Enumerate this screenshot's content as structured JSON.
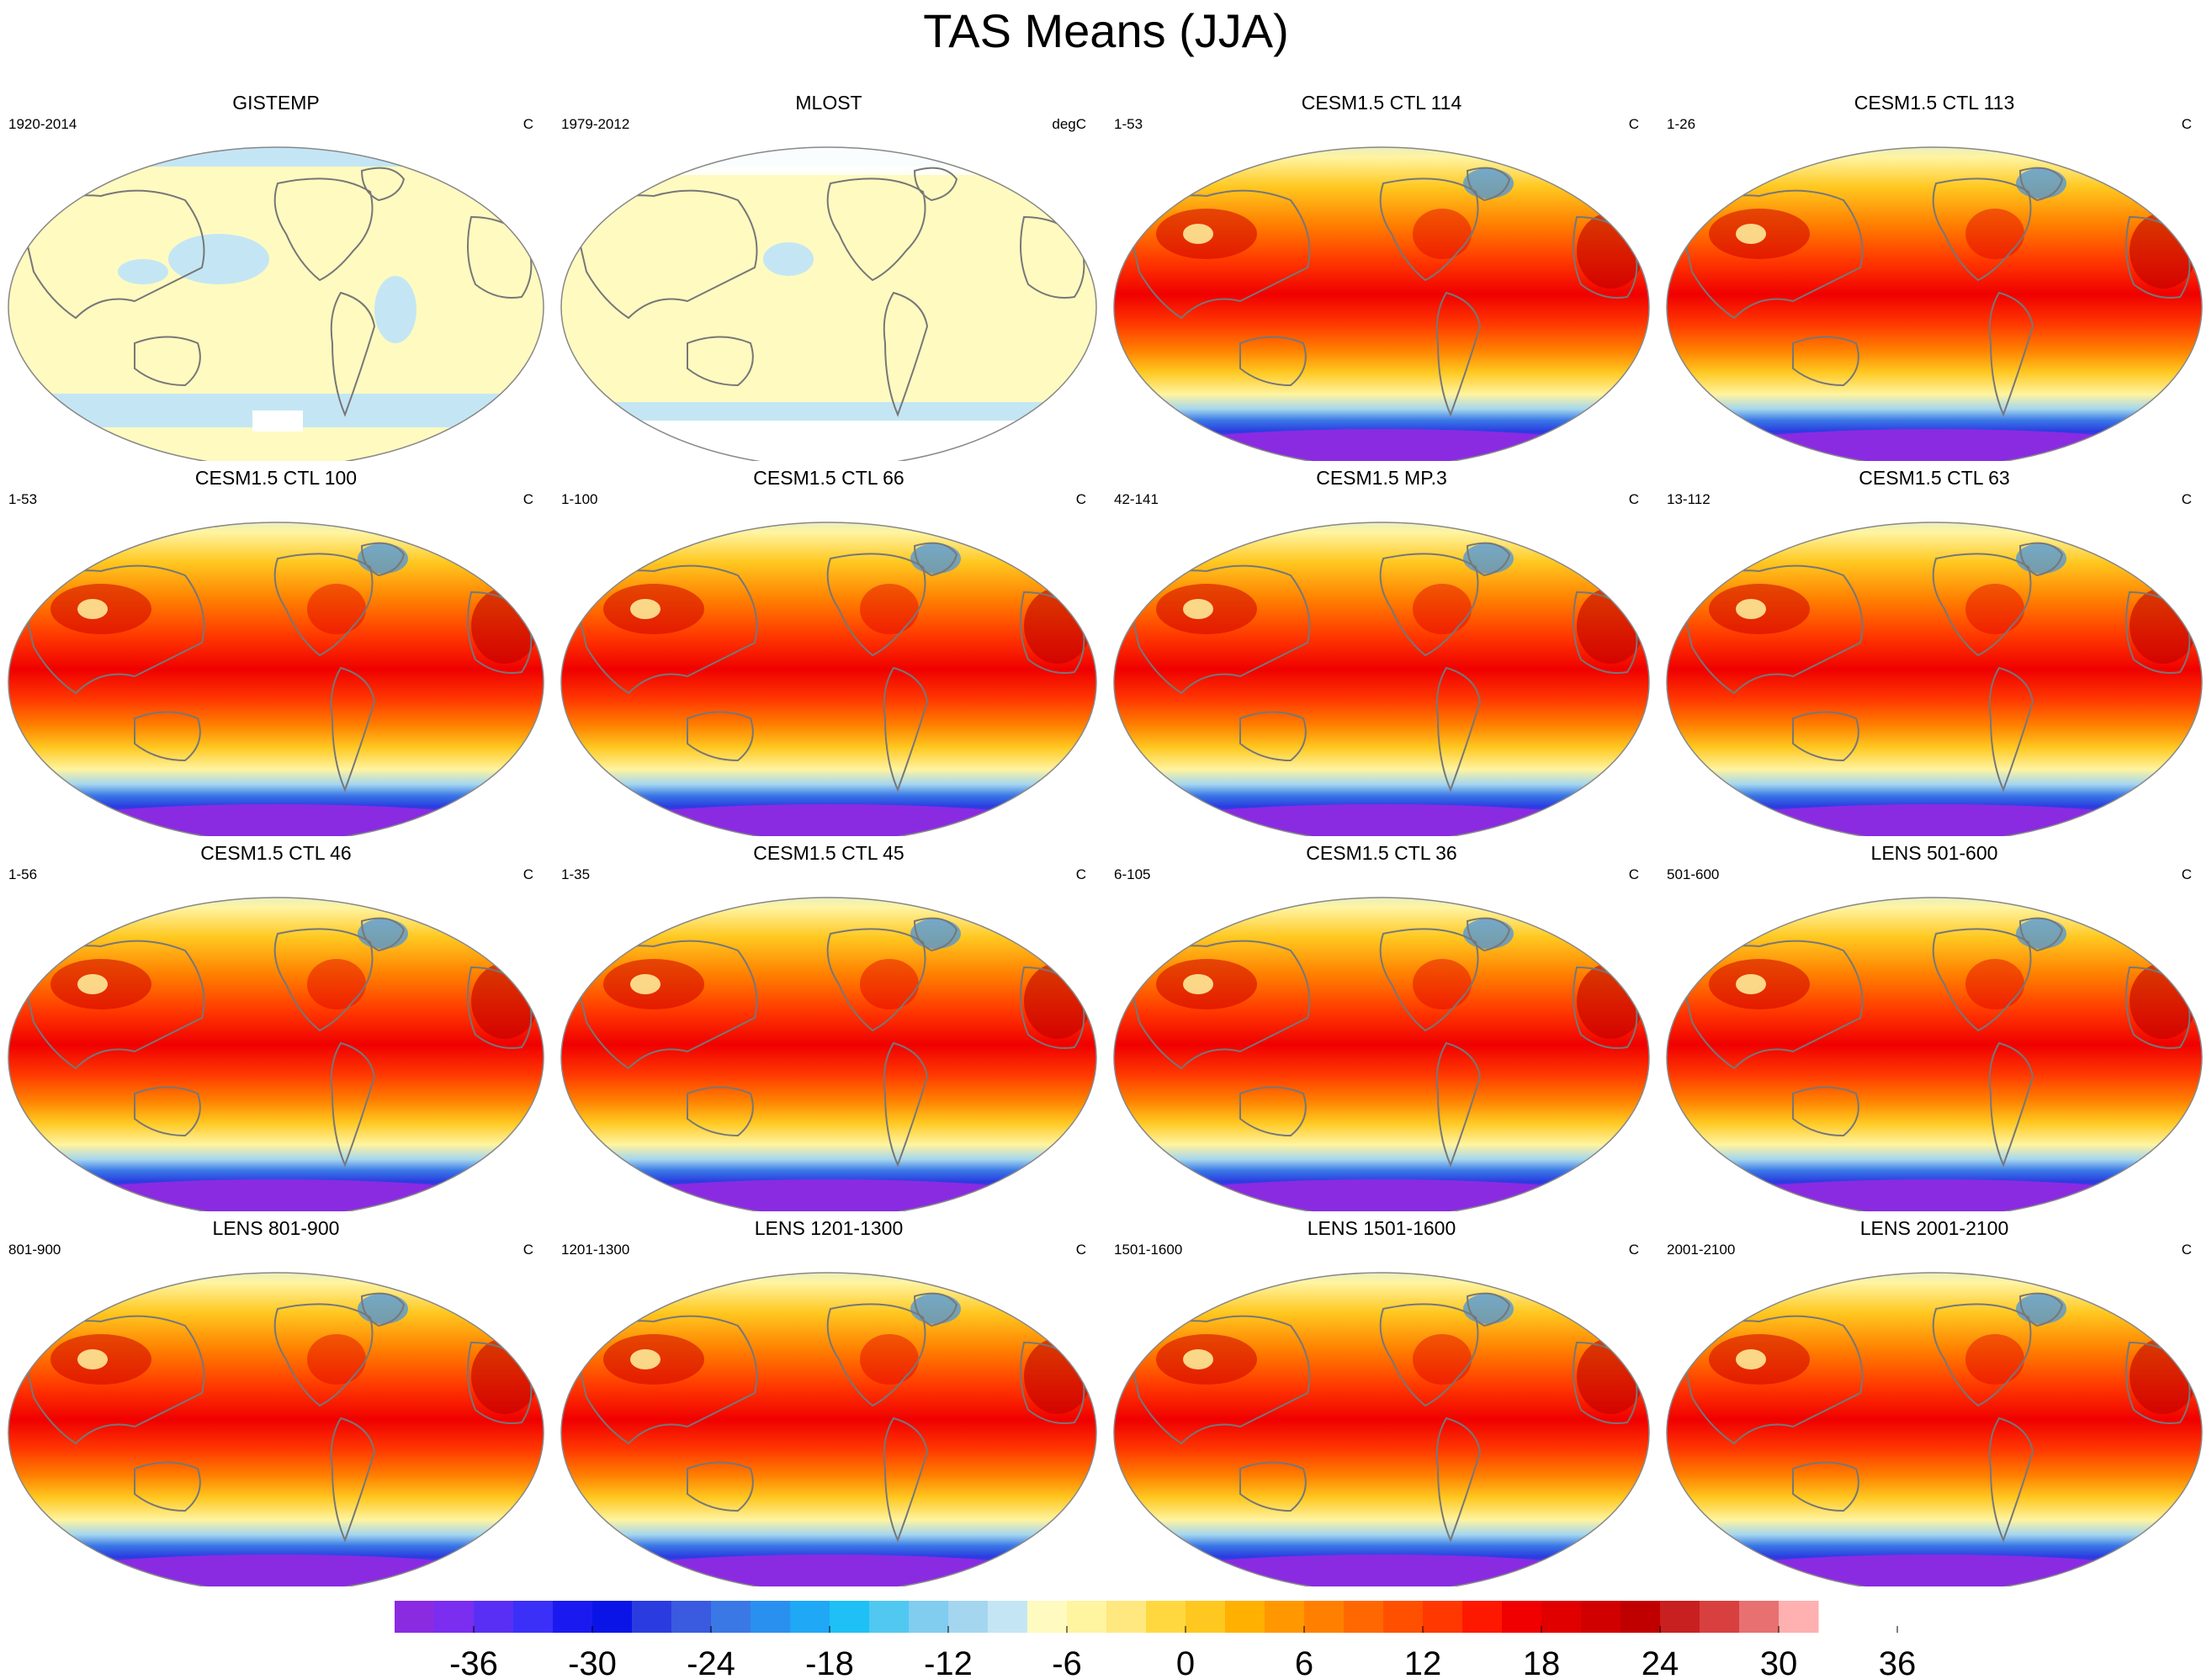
{
  "title": "TAS Means (JJA)",
  "panels": [
    {
      "title": "GISTEMP",
      "period": "1920-2014",
      "unit": "C",
      "style": "obs"
    },
    {
      "title": "MLOST",
      "period": "1979-2012",
      "unit": "degC",
      "style": "obs2"
    },
    {
      "title": "CESM1.5 CTL 114",
      "period": "1-53",
      "unit": "C",
      "style": "model"
    },
    {
      "title": "CESM1.5 CTL 113",
      "period": "1-26",
      "unit": "C",
      "style": "model"
    },
    {
      "title": "CESM1.5 CTL 100",
      "period": "1-53",
      "unit": "C",
      "style": "model"
    },
    {
      "title": "CESM1.5 CTL 66",
      "period": "1-100",
      "unit": "C",
      "style": "model"
    },
    {
      "title": "CESM1.5 MP.3",
      "period": "42-141",
      "unit": "C",
      "style": "model"
    },
    {
      "title": "CESM1.5 CTL 63",
      "period": "13-112",
      "unit": "C",
      "style": "model"
    },
    {
      "title": "CESM1.5 CTL 46",
      "period": "1-56",
      "unit": "C",
      "style": "model"
    },
    {
      "title": "CESM1.5 CTL 45",
      "period": "1-35",
      "unit": "C",
      "style": "model"
    },
    {
      "title": "CESM1.5 CTL 36",
      "period": "6-105",
      "unit": "C",
      "style": "model"
    },
    {
      "title": "LENS 501-600",
      "period": "501-600",
      "unit": "C",
      "style": "model"
    },
    {
      "title": "LENS 801-900",
      "period": "801-900",
      "unit": "C",
      "style": "model"
    },
    {
      "title": "LENS 1201-1300",
      "period": "1201-1300",
      "unit": "C",
      "style": "model"
    },
    {
      "title": "LENS 1501-1600",
      "period": "1501-1600",
      "unit": "C",
      "style": "model"
    },
    {
      "title": "LENS 2001-2100",
      "period": "2001-2100",
      "unit": "C",
      "style": "model"
    }
  ],
  "colorbar": {
    "colors": [
      "#8a2be2",
      "#7b2df0",
      "#5a2ff5",
      "#3a30f8",
      "#1a1af0",
      "#0a14e6",
      "#2a3ce0",
      "#3a5ae0",
      "#3a78e6",
      "#2a90f0",
      "#1ea8f5",
      "#1ec0f5",
      "#50c8f0",
      "#80cdf0",
      "#a4d6ef",
      "#c4e6f4",
      "#fffac0",
      "#fff4a0",
      "#ffe880",
      "#ffd840",
      "#ffc820",
      "#ffb000",
      "#ff9800",
      "#ff8000",
      "#ff6800",
      "#ff5000",
      "#ff3800",
      "#ff1800",
      "#f00000",
      "#e00000",
      "#d00000",
      "#c00000",
      "#c82020",
      "#d84040",
      "#e87070",
      "#ffb0b0"
    ],
    "tick_labels": [
      "-36",
      "-30",
      "-24",
      "-18",
      "-12",
      "-6",
      "0",
      "6",
      "12",
      "18",
      "24",
      "30",
      "36"
    ]
  }
}
